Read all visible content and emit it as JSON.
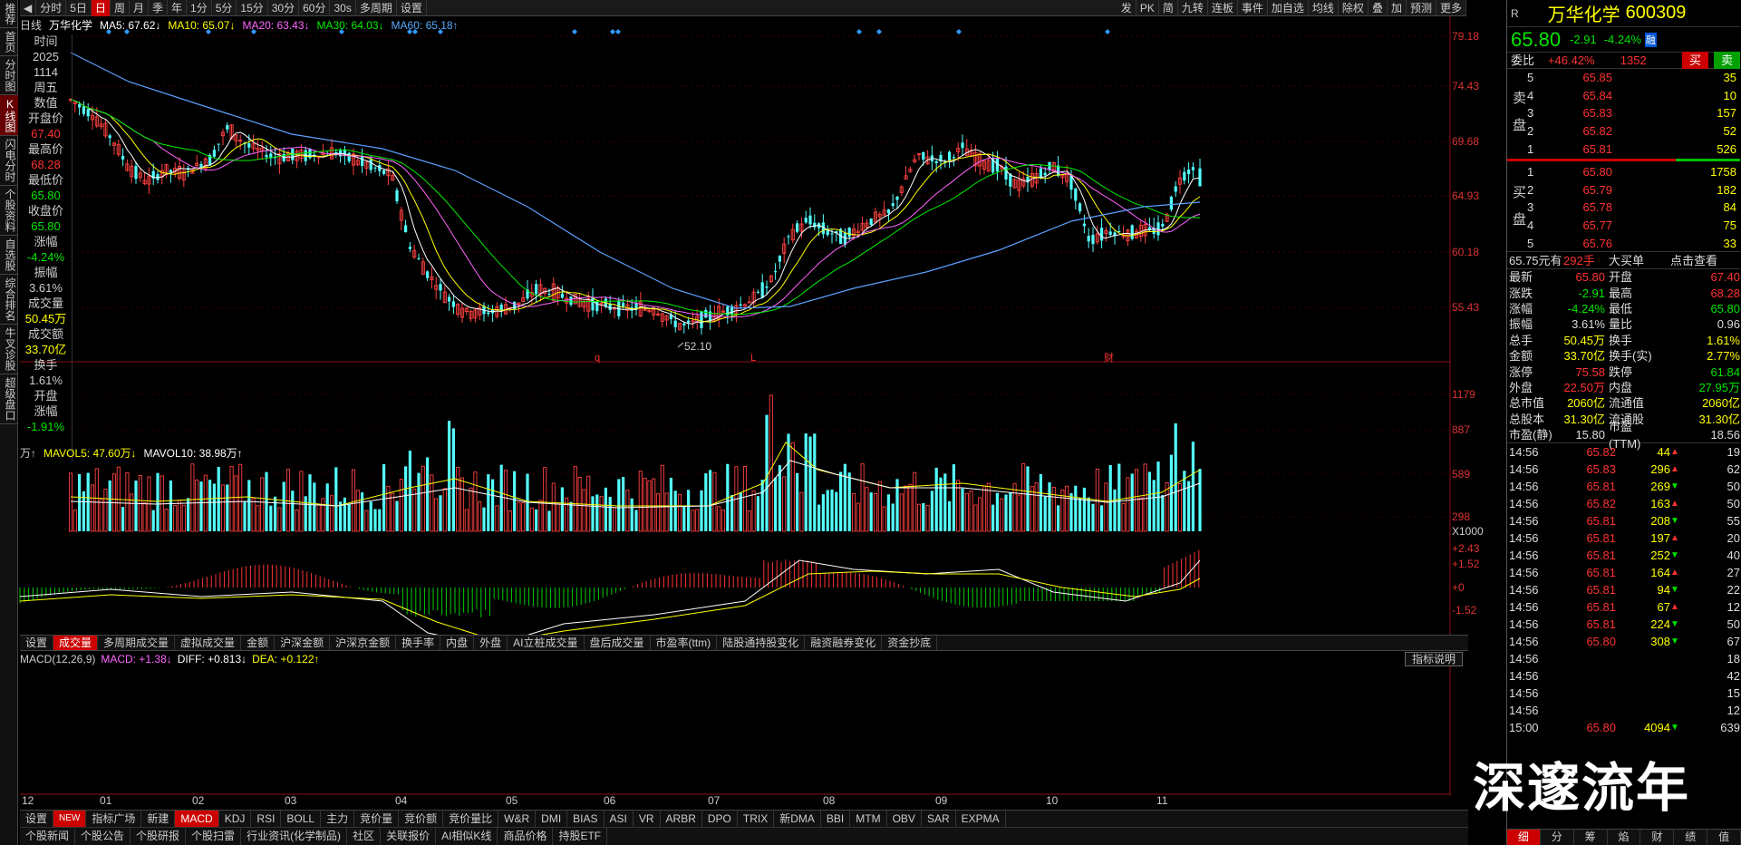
{
  "left_nav": [
    "推荐",
    "首页",
    "分时图",
    "K线图",
    "闪电分时",
    "个股资料",
    "自选股",
    "综合排名",
    "牛叉诊股",
    "超级盘口"
  ],
  "left_nav_active": 3,
  "toolbar": {
    "items": [
      "分时",
      "5日",
      "日",
      "周",
      "月",
      "季",
      "年",
      "1分",
      "5分",
      "15分",
      "30分",
      "60分",
      "30s",
      "多周期",
      "设置"
    ],
    "active": 2,
    "right": [
      "发",
      "PK",
      "简",
      "九转",
      "连板",
      "事件",
      "加自选",
      "均线",
      "除权",
      "叠",
      "加",
      "预测",
      "更多"
    ]
  },
  "info_line": {
    "period": "日线",
    "name": "万华化学",
    "ma5": "MA5: 67.62↓",
    "ma10": "MA10: 65.07↓",
    "ma20": "MA20: 63.43↓",
    "ma30": "MA30: 64.03↓",
    "ma60": "MA60: 65.18↑"
  },
  "price_axis": [
    "79.18",
    "74.43",
    "69.68",
    "64.93",
    "60.18",
    "55.43"
  ],
  "vol_axis": [
    "1179",
    "887",
    "589",
    "298",
    "X1000"
  ],
  "macd_axis": [
    "+2.43",
    "+1.52",
    "+0",
    "-1.52"
  ],
  "data_panel": [
    "时间",
    "2025",
    "1114",
    "周五",
    "数值",
    "开盘价",
    "67.40",
    "最高价",
    "68.28",
    "最低价",
    "65.80",
    "收盘价",
    "65.80",
    "涨幅",
    "-4.24%",
    "振幅",
    "3.61%",
    "成交量",
    "50.45万",
    "成交额",
    "33.70亿",
    "换手",
    "1.61%",
    "开盘",
    "涨幅",
    "-1.91%"
  ],
  "low_label": "52.10",
  "event_marks": [
    "q",
    "L",
    "财"
  ],
  "vol_line": {
    "unit": "万↑",
    "mavol5": "MAVOL5: 47.60万↓",
    "mavol10": "MAVOL10: 38.98万↑"
  },
  "indicator_tabs": [
    "设置",
    "成交量",
    "多周期成交量",
    "虚拟成交量",
    "金额",
    "沪深金额",
    "沪深京金额",
    "换手率",
    "内盘",
    "外盘",
    "AI立桩成交量",
    "盘后成交量",
    "市盈率(ttm)",
    "陆股通持股变化",
    "融资融券变化",
    "资金抄底"
  ],
  "indicator_active": 1,
  "macd_line": {
    "name": "MACD(12,26,9)",
    "macd": "MACD: +1.38↓",
    "diff": "DIFF: +0.813↓",
    "dea": "DEA: +0.122↑"
  },
  "macd_help": "指标说明",
  "dates": [
    "12",
    "01",
    "02",
    "03",
    "04",
    "05",
    "06",
    "07",
    "08",
    "09",
    "10",
    "11"
  ],
  "bottom_tabs": [
    "设置",
    "NEW",
    "指标广场",
    "新建",
    "MACD",
    "KDJ",
    "RSI",
    "BOLL",
    "主力",
    "竞价量",
    "竞价额",
    "竞价量比",
    "W&R",
    "DMI",
    "BIAS",
    "ASI",
    "VR",
    "ARBR",
    "DPO",
    "TRIX",
    "新DMA",
    "BBI",
    "MTM",
    "OBV",
    "SAR",
    "EXPMA"
  ],
  "bottom_active": 4,
  "bottom_tabs2": [
    "个股新闻",
    "个股公告",
    "个股研报",
    "个股扫雷",
    "行业资讯(化学制品)",
    "社区",
    "关联报价",
    "AI相似K线",
    "商品价格",
    "持股ETF"
  ],
  "watermark": "深邃流年",
  "quote": {
    "name": "万华化学",
    "code": "600309",
    "price": "65.80",
    "change": "-2.91",
    "pct": "-4.24%",
    "tag": "融",
    "weibi_label": "委比",
    "weibi": "+46.42%",
    "weicha": "1352",
    "buy": "买",
    "sell": "卖",
    "sell_label": "卖盘",
    "buy_label": "买盘",
    "asks": [
      [
        "5",
        "65.85",
        "35"
      ],
      [
        "4",
        "65.84",
        "10"
      ],
      [
        "3",
        "65.83",
        "157"
      ],
      [
        "2",
        "65.82",
        "52"
      ],
      [
        "1",
        "65.81",
        "526"
      ]
    ],
    "bids": [
      [
        "1",
        "65.80",
        "1758"
      ],
      [
        "2",
        "65.79",
        "182"
      ],
      [
        "3",
        "65.78",
        "84"
      ],
      [
        "4",
        "65.77",
        "75"
      ],
      [
        "5",
        "65.76",
        "33"
      ]
    ],
    "hint": {
      "p": "65.75元有",
      "q": "292手",
      "t": "大买单",
      "c": "点击查看"
    },
    "stats": [
      [
        "最新",
        "65.80",
        "开盘",
        "67.40"
      ],
      [
        "涨跌",
        "-2.91",
        "最高",
        "68.28"
      ],
      [
        "涨幅",
        "-4.24%",
        "最低",
        "65.80"
      ],
      [
        "振幅",
        "3.61%",
        "量比",
        "0.96"
      ],
      [
        "总手",
        "50.45万",
        "换手",
        "1.61%"
      ],
      [
        "金额",
        "33.70亿",
        "换手(实)",
        "2.77%"
      ],
      [
        "涨停",
        "75.58",
        "跌停",
        "61.84"
      ],
      [
        "外盘",
        "22.50万",
        "内盘",
        "27.95万"
      ],
      [
        "总市值",
        "2060亿",
        "流通值",
        "2060亿"
      ],
      [
        "总股本",
        "31.30亿",
        "流通股",
        "31.30亿"
      ],
      [
        "市盈(静)",
        "15.80",
        "市盈(TTM)",
        "18.56"
      ]
    ],
    "ticks": [
      [
        "14:56",
        "65.82",
        "44",
        "19",
        "u"
      ],
      [
        "14:56",
        "65.83",
        "296",
        "62",
        "u"
      ],
      [
        "14:56",
        "65.81",
        "269",
        "50",
        "d"
      ],
      [
        "14:56",
        "65.82",
        "163",
        "50",
        "u"
      ],
      [
        "14:56",
        "65.81",
        "208",
        "55",
        "d"
      ],
      [
        "14:56",
        "65.81",
        "197",
        "20",
        "u"
      ],
      [
        "14:56",
        "65.81",
        "252",
        "40",
        "d"
      ],
      [
        "14:56",
        "65.81",
        "164",
        "27",
        "u"
      ],
      [
        "14:56",
        "65.81",
        "94",
        "22",
        "d"
      ],
      [
        "14:56",
        "65.81",
        "67",
        "12",
        "u"
      ],
      [
        "14:56",
        "65.81",
        "224",
        "50",
        "d"
      ],
      [
        "14:56",
        "65.80",
        "308",
        "67",
        "d"
      ],
      [
        "14:56",
        "",
        "",
        "18",
        ""
      ],
      [
        "14:56",
        "",
        "",
        "42",
        ""
      ],
      [
        "14:56",
        "",
        "",
        "15",
        ""
      ],
      [
        "14:56",
        "",
        "",
        "12",
        ""
      ],
      [
        "15:00",
        "65.80",
        "4094",
        "639",
        "d"
      ]
    ],
    "bottom_nav": [
      "细",
      "分",
      "筹",
      "焰",
      "财",
      "绩",
      "值"
    ]
  }
}
